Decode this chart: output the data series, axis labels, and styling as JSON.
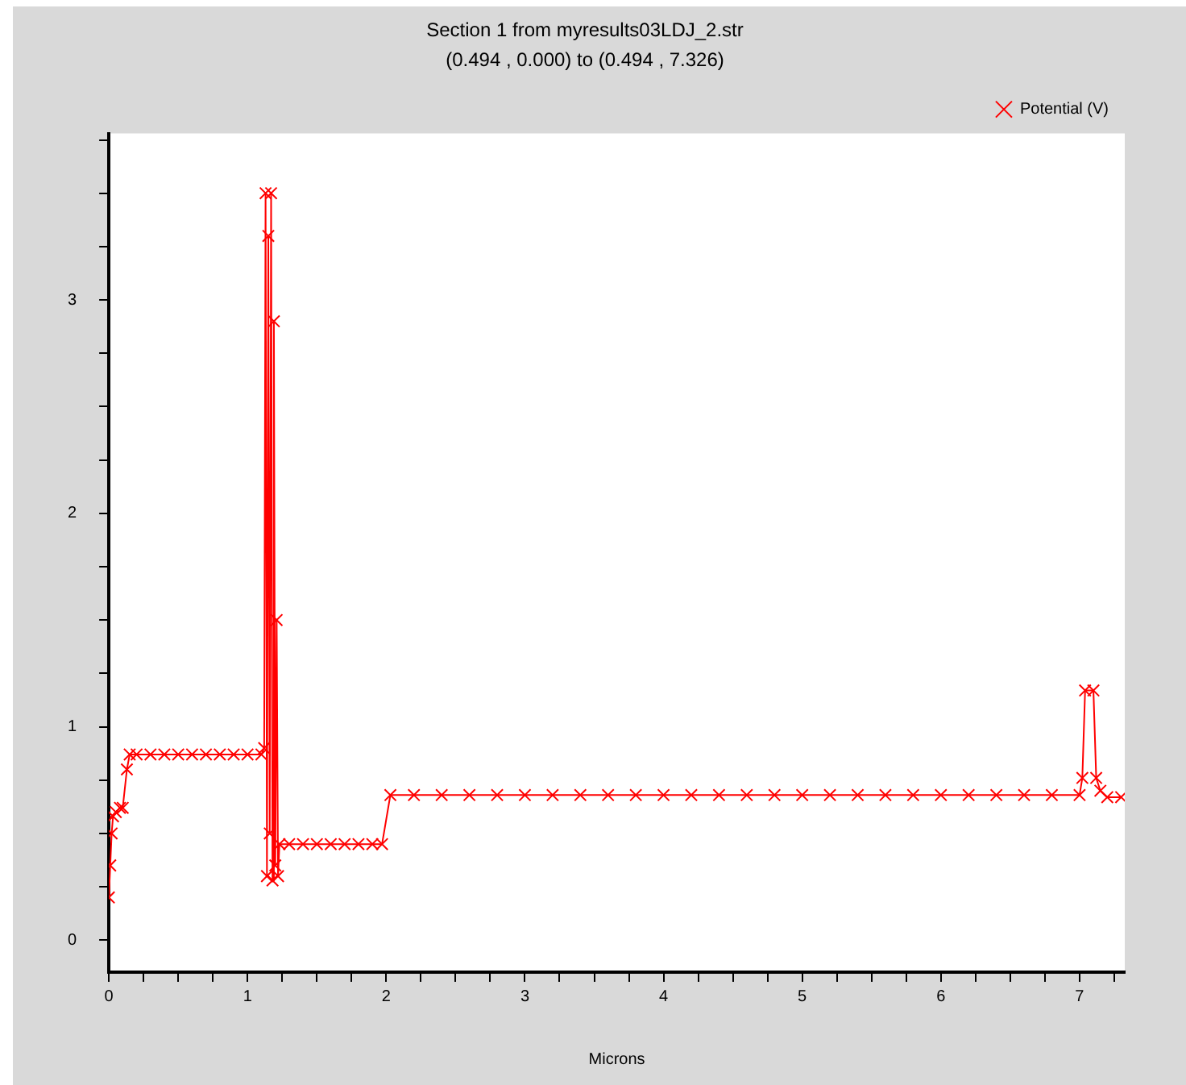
{
  "chart_data": {
    "type": "line",
    "title": "Section 1 from myresults03LDJ_2.str",
    "subtitle": "(0.494 , 0.000) to (0.494 , 7.326)",
    "xlabel": "Microns",
    "xlim": [
      0,
      7.326
    ],
    "ylim": [
      -0.15,
      3.78
    ],
    "xticks": [
      0,
      {
        "value": 0.25,
        "label": null
      },
      {
        "value": 0.5,
        "label": null
      },
      {
        "value": 0.75,
        "label": null
      },
      1,
      {
        "value": 1.25,
        "label": null
      },
      {
        "value": 1.5,
        "label": null
      },
      {
        "value": 1.75,
        "label": null
      },
      2,
      {
        "value": 2.25,
        "label": null
      },
      {
        "value": 2.5,
        "label": null
      },
      {
        "value": 2.75,
        "label": null
      },
      3,
      {
        "value": 3.25,
        "label": null
      },
      {
        "value": 3.5,
        "label": null
      },
      {
        "value": 3.75,
        "label": null
      },
      4,
      {
        "value": 4.25,
        "label": null
      },
      {
        "value": 4.5,
        "label": null
      },
      {
        "value": 4.75,
        "label": null
      },
      5,
      {
        "value": 5.25,
        "label": null
      },
      {
        "value": 5.5,
        "label": null
      },
      {
        "value": 5.75,
        "label": null
      },
      6,
      {
        "value": 6.25,
        "label": null
      },
      {
        "value": 6.5,
        "label": null
      },
      {
        "value": 6.75,
        "label": null
      },
      7,
      {
        "value": 7.25,
        "label": null
      }
    ],
    "yticks": [
      0,
      {
        "value": 0.25,
        "label": null
      },
      {
        "value": 0.5,
        "label": null
      },
      {
        "value": 0.75,
        "label": null
      },
      1,
      {
        "value": 1.25,
        "label": null
      },
      {
        "value": 1.5,
        "label": null
      },
      {
        "value": 1.75,
        "label": null
      },
      2,
      {
        "value": 2.25,
        "label": null
      },
      {
        "value": 2.5,
        "label": null
      },
      {
        "value": 2.75,
        "label": null
      },
      3,
      {
        "value": 3.25,
        "label": null
      },
      {
        "value": 3.5,
        "label": null
      },
      {
        "value": 3.75,
        "label": null
      }
    ],
    "grid": false,
    "legend": "top right",
    "marker": "cross",
    "line_style": "solid",
    "series": [
      {
        "name": "Potential (V)",
        "color": "#ff0000",
        "x": [
          0,
          0.01,
          0.02,
          0.03,
          0.05,
          0.08,
          0.1,
          0.13,
          0.15,
          0.2,
          0.3,
          0.4,
          0.5,
          0.6,
          0.7,
          0.8,
          0.9,
          1.0,
          1.1,
          1.12,
          1.13,
          1.14,
          1.15,
          1.16,
          1.17,
          1.18,
          1.19,
          1.2,
          1.21,
          1.22,
          1.23,
          1.3,
          1.4,
          1.5,
          1.6,
          1.7,
          1.8,
          1.9,
          1.97,
          2.03,
          2.2,
          2.4,
          2.6,
          2.8,
          3.0,
          3.2,
          3.4,
          3.6,
          3.8,
          4.0,
          4.2,
          4.4,
          4.6,
          4.8,
          5.0,
          5.2,
          5.4,
          5.6,
          5.8,
          6.0,
          6.2,
          6.4,
          6.6,
          6.8,
          7.0,
          7.02,
          7.04,
          7.1,
          7.12,
          7.15,
          7.2,
          7.3
        ],
        "values": [
          0.2,
          0.35,
          0.5,
          0.58,
          0.6,
          0.62,
          0.62,
          0.8,
          0.87,
          0.87,
          0.87,
          0.87,
          0.87,
          0.87,
          0.87,
          0.87,
          0.87,
          0.87,
          0.87,
          0.9,
          3.5,
          0.3,
          3.3,
          0.5,
          3.5,
          0.28,
          2.9,
          0.35,
          1.5,
          0.3,
          0.45,
          0.45,
          0.45,
          0.45,
          0.45,
          0.45,
          0.45,
          0.45,
          0.45,
          0.68,
          0.68,
          0.68,
          0.68,
          0.68,
          0.68,
          0.68,
          0.68,
          0.68,
          0.68,
          0.68,
          0.68,
          0.68,
          0.68,
          0.68,
          0.68,
          0.68,
          0.68,
          0.68,
          0.68,
          0.68,
          0.68,
          0.68,
          0.68,
          0.68,
          0.68,
          0.76,
          1.17,
          1.17,
          0.76,
          0.7,
          0.67,
          0.67
        ]
      }
    ]
  }
}
